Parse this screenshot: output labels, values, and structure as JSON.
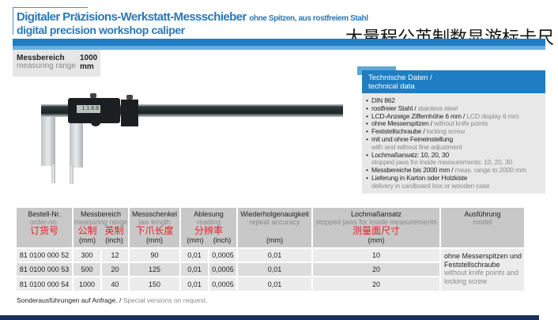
{
  "header": {
    "title_de": "Digitaler Präzisions-Werkstatt-Messschieber",
    "title_de_sub": "ohne Spitzen, aus rostfreiem Stahl",
    "title_en": "digital precision workshop caliper",
    "title_zh": "大量程公英制数显游标卡尺",
    "accent": "#1f7dc3"
  },
  "range": {
    "label_de": "Messbereich",
    "label_en": "measuring range",
    "value": "1000 mm"
  },
  "tech": {
    "title": "Technische Daten /",
    "title2": "technical data",
    "items": [
      {
        "de": "DIN 862",
        "en": ""
      },
      {
        "de": "rostfreier Stahl / ",
        "en": "stainless steel"
      },
      {
        "de": "LCD-Anzeige Ziffernhöhe 6 mm / ",
        "en": "LCD display 6 mm"
      },
      {
        "de": "ohne Messerspitzen / ",
        "en": "without knife points"
      },
      {
        "de": "Feststellschraube / ",
        "en": "locking screw"
      },
      {
        "de": "mit und ohne Feineinstellung",
        "en": "with and without fine adjustment"
      },
      {
        "de": "Lochmaßansatz: 10, 20, 30",
        "en": "stopped jaws for inside measurements: 10, 20, 30"
      },
      {
        "de": "Messbereiche bis 2000 mm / ",
        "en": "meas. range to 2000 mm"
      },
      {
        "de": "Lieferung in Karton oder Holzkiste",
        "en": "delivery in cardboard box or wooden case"
      }
    ]
  },
  "caliper": {
    "display": "1.1.8.8"
  },
  "table": {
    "headers": [
      {
        "de": "Bestell-Nr.",
        "en": "order-no.",
        "zh": "订货号"
      },
      {
        "de": "Messbereich",
        "en": "measuring range",
        "zh1": "公制",
        "zh2": "英制",
        "u1": "(mm)",
        "u2": "(inch)"
      },
      {
        "de": "Messschenkel",
        "en": "jaw length",
        "zh": "下爪长度",
        "u": "(mm)"
      },
      {
        "de": "Ablesung",
        "en": "reading",
        "zh": "分辨率",
        "u1": "(mm)",
        "u2": "(inch)"
      },
      {
        "de": "Wiederholgenauigkeit",
        "en": "repeat accuracy",
        "u": "(mm)"
      },
      {
        "de": "Lochmaßansatz",
        "en": "stopped jaws for inside measurements",
        "zh": "测量面尺寸",
        "u": "(mm)"
      },
      {
        "de": "Ausführung",
        "en": "model"
      }
    ],
    "rows": [
      [
        "81 0100 000 52",
        "300",
        "12",
        "90",
        "0,01",
        "0,0005",
        "0,01",
        "10"
      ],
      [
        "81 0100 000 53",
        "500",
        "20",
        "125",
        "0,01",
        "0,0005",
        "0,01",
        "20"
      ],
      [
        "81 0100 000 54",
        "1000",
        "40",
        "150",
        "0,01",
        "0,0005",
        "0,01",
        "20"
      ]
    ],
    "model_de": "ohne Messerspitzen und Feststellschraube",
    "model_en": "without knife points and locking screw"
  },
  "footnote": {
    "de": "Sonderausführungen auf Anfrage. / ",
    "en": "Special versions on request."
  }
}
